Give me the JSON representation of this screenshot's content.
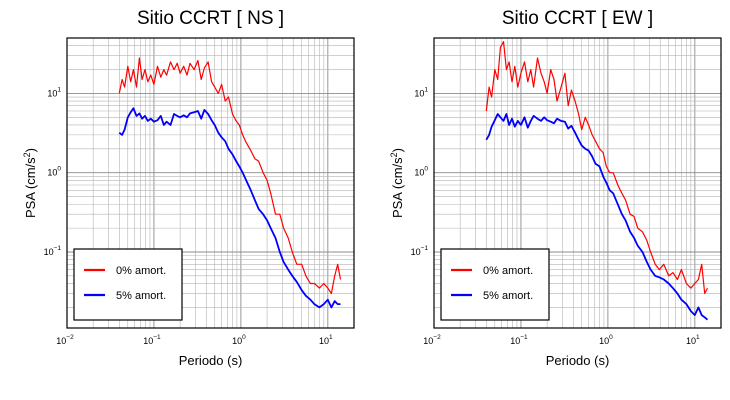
{
  "chart_data": [
    {
      "type": "line",
      "title": "Sitio CCRT [ NS ]",
      "xlabel": "Periodo (s)",
      "ylabel_main": "PSA (cm/s",
      "ylabel_sup": "2",
      "ylabel_close": ")",
      "xscale": "log",
      "yscale": "log",
      "xlim": [
        0.01,
        20
      ],
      "ylim": [
        0.011,
        50
      ],
      "grid": true,
      "legend_position": "bottom-left",
      "x_ticks": [
        {
          "base": "10",
          "exp": "−2"
        },
        {
          "base": "10",
          "exp": "−1"
        },
        {
          "base": "10",
          "exp": "0"
        },
        {
          "base": "10",
          "exp": "1"
        }
      ],
      "y_ticks": [
        {
          "base": "10",
          "exp": "−1"
        },
        {
          "base": "10",
          "exp": "0"
        },
        {
          "base": "10",
          "exp": "1"
        }
      ],
      "series": [
        {
          "name": "0% amort.",
          "color": "#ff0000",
          "x": [
            0.04,
            0.043,
            0.046,
            0.05,
            0.054,
            0.058,
            0.063,
            0.068,
            0.073,
            0.079,
            0.085,
            0.092,
            0.1,
            0.11,
            0.12,
            0.13,
            0.14,
            0.155,
            0.17,
            0.185,
            0.2,
            0.22,
            0.24,
            0.26,
            0.29,
            0.32,
            0.35,
            0.38,
            0.42,
            0.46,
            0.5,
            0.55,
            0.6,
            0.66,
            0.72,
            0.8,
            0.88,
            0.96,
            1.05,
            1.15,
            1.3,
            1.45,
            1.6,
            1.8,
            2.0,
            2.2,
            2.5,
            2.8,
            3.1,
            3.5,
            3.9,
            4.4,
            5.0,
            5.6,
            6.3,
            7.0,
            8.0,
            9.0,
            10.0,
            11.0,
            12.0,
            13.0,
            14.0
          ],
          "y": [
            10,
            15,
            12,
            22,
            14,
            20,
            12,
            28,
            15,
            20,
            14,
            17,
            13,
            22,
            16,
            20,
            17,
            25,
            20,
            24,
            18,
            22,
            17,
            24,
            20,
            26,
            15,
            21,
            25,
            14,
            12,
            10,
            13,
            8,
            9,
            5.5,
            4.5,
            4,
            3,
            2.4,
            1.9,
            1.5,
            1.4,
            1.0,
            0.8,
            0.55,
            0.3,
            0.3,
            0.2,
            0.15,
            0.1,
            0.07,
            0.07,
            0.05,
            0.04,
            0.04,
            0.035,
            0.04,
            0.035,
            0.03,
            0.05,
            0.07,
            0.045
          ]
        },
        {
          "name": "5% amort.",
          "color": "#0000ff",
          "x": [
            0.04,
            0.043,
            0.046,
            0.05,
            0.054,
            0.058,
            0.063,
            0.068,
            0.073,
            0.079,
            0.085,
            0.092,
            0.1,
            0.11,
            0.12,
            0.13,
            0.14,
            0.155,
            0.17,
            0.185,
            0.2,
            0.22,
            0.24,
            0.26,
            0.29,
            0.32,
            0.35,
            0.38,
            0.42,
            0.46,
            0.5,
            0.55,
            0.6,
            0.66,
            0.72,
            0.8,
            0.88,
            0.96,
            1.05,
            1.15,
            1.3,
            1.45,
            1.6,
            1.8,
            2.0,
            2.2,
            2.5,
            2.8,
            3.1,
            3.5,
            3.9,
            4.4,
            5.0,
            5.6,
            6.3,
            7.0,
            8.0,
            9.0,
            10.0,
            11.0,
            12.0,
            13.0,
            14.0
          ],
          "y": [
            3.2,
            3.0,
            3.5,
            5.0,
            5.8,
            6.5,
            5.2,
            5.6,
            4.8,
            5.2,
            4.5,
            4.8,
            4.4,
            4.6,
            5.2,
            4.0,
            4.4,
            4.0,
            5.5,
            5.2,
            5.0,
            5.3,
            5.0,
            5.6,
            5.8,
            6.0,
            4.8,
            6.2,
            5.5,
            4.6,
            4.0,
            3.2,
            2.8,
            2.5,
            2.0,
            1.7,
            1.4,
            1.2,
            1.0,
            0.8,
            0.6,
            0.45,
            0.35,
            0.3,
            0.25,
            0.2,
            0.15,
            0.1,
            0.075,
            0.06,
            0.05,
            0.042,
            0.033,
            0.028,
            0.025,
            0.022,
            0.02,
            0.022,
            0.025,
            0.02,
            0.024,
            0.022,
            0.022
          ]
        }
      ]
    },
    {
      "type": "line",
      "title": "Sitio CCRT [ EW ]",
      "xlabel": "Periodo (s)",
      "ylabel_main": "PSA (cm/s",
      "ylabel_sup": "2",
      "ylabel_close": ")",
      "xscale": "log",
      "yscale": "log",
      "xlim": [
        0.01,
        20
      ],
      "ylim": [
        0.011,
        50
      ],
      "grid": true,
      "legend_position": "bottom-left",
      "x_ticks": [
        {
          "base": "10",
          "exp": "−2"
        },
        {
          "base": "10",
          "exp": "−1"
        },
        {
          "base": "10",
          "exp": "0"
        },
        {
          "base": "10",
          "exp": "1"
        }
      ],
      "y_ticks": [
        {
          "base": "10",
          "exp": "−1"
        },
        {
          "base": "10",
          "exp": "0"
        },
        {
          "base": "10",
          "exp": "1"
        }
      ],
      "series": [
        {
          "name": "0% amort.",
          "color": "#ff0000",
          "x": [
            0.04,
            0.043,
            0.046,
            0.05,
            0.054,
            0.058,
            0.063,
            0.068,
            0.073,
            0.079,
            0.085,
            0.092,
            0.1,
            0.11,
            0.12,
            0.13,
            0.14,
            0.155,
            0.17,
            0.185,
            0.2,
            0.22,
            0.24,
            0.26,
            0.29,
            0.32,
            0.35,
            0.38,
            0.42,
            0.46,
            0.5,
            0.55,
            0.6,
            0.66,
            0.72,
            0.8,
            0.88,
            0.96,
            1.05,
            1.15,
            1.3,
            1.45,
            1.6,
            1.8,
            2.0,
            2.2,
            2.5,
            2.8,
            3.1,
            3.5,
            3.9,
            4.4,
            5.0,
            5.6,
            6.3,
            7.0,
            8.0,
            9.0,
            10.0,
            11.0,
            12.0,
            13.0,
            14.0
          ],
          "y": [
            6,
            12,
            9,
            20,
            15,
            38,
            45,
            20,
            25,
            14,
            22,
            12,
            18,
            25,
            14,
            20,
            12,
            28,
            18,
            14,
            10,
            20,
            15,
            8,
            12,
            18,
            7,
            11,
            8,
            5.5,
            3.5,
            5,
            4,
            3,
            2.5,
            2.0,
            1.8,
            1.2,
            1.0,
            1.0,
            0.7,
            0.55,
            0.45,
            0.3,
            0.28,
            0.2,
            0.18,
            0.14,
            0.1,
            0.07,
            0.06,
            0.07,
            0.05,
            0.055,
            0.045,
            0.06,
            0.04,
            0.035,
            0.04,
            0.045,
            0.07,
            0.03,
            0.035
          ]
        },
        {
          "name": "5% amort.",
          "color": "#0000ff",
          "x": [
            0.04,
            0.043,
            0.046,
            0.05,
            0.054,
            0.058,
            0.063,
            0.068,
            0.073,
            0.079,
            0.085,
            0.092,
            0.1,
            0.11,
            0.12,
            0.13,
            0.14,
            0.155,
            0.17,
            0.185,
            0.2,
            0.22,
            0.24,
            0.26,
            0.29,
            0.32,
            0.35,
            0.38,
            0.42,
            0.46,
            0.5,
            0.55,
            0.6,
            0.66,
            0.72,
            0.8,
            0.88,
            0.96,
            1.05,
            1.15,
            1.3,
            1.45,
            1.6,
            1.8,
            2.0,
            2.2,
            2.5,
            2.8,
            3.1,
            3.5,
            3.9,
            4.4,
            5.0,
            5.6,
            6.3,
            7.0,
            8.0,
            9.0,
            10.0,
            11.0,
            12.0,
            13.0,
            14.0
          ],
          "y": [
            2.6,
            3.0,
            3.8,
            4.6,
            5.5,
            5.0,
            4.5,
            5.5,
            4.0,
            4.8,
            3.8,
            4.5,
            4.0,
            5.0,
            3.7,
            4.5,
            5.2,
            4.8,
            4.5,
            5.0,
            4.6,
            4.4,
            4.2,
            4.8,
            4.5,
            4.4,
            3.6,
            3.9,
            3.2,
            2.6,
            2.2,
            2.0,
            1.9,
            1.6,
            1.3,
            1.2,
            0.9,
            0.75,
            0.6,
            0.55,
            0.4,
            0.3,
            0.25,
            0.18,
            0.15,
            0.12,
            0.1,
            0.075,
            0.06,
            0.05,
            0.048,
            0.045,
            0.04,
            0.035,
            0.03,
            0.025,
            0.022,
            0.018,
            0.016,
            0.02,
            0.016,
            0.015,
            0.014
          ]
        }
      ]
    }
  ]
}
